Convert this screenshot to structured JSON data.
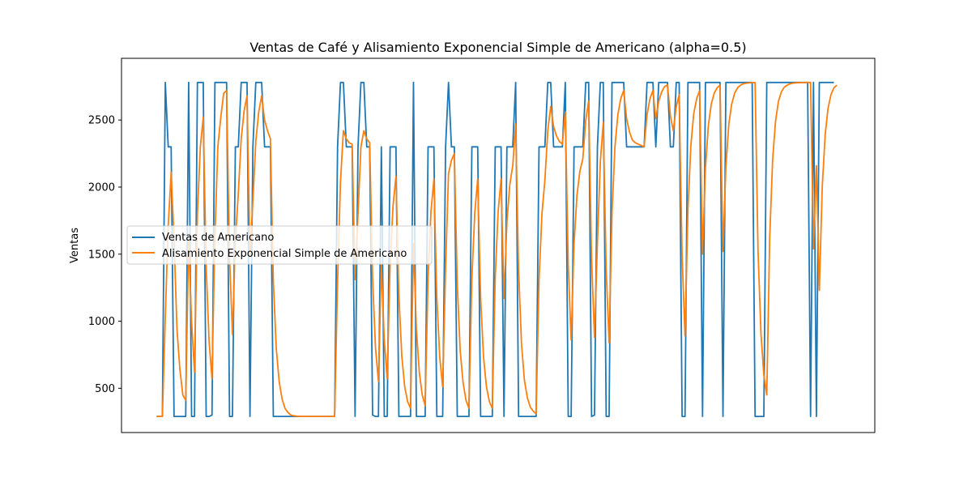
{
  "chart_data": {
    "type": "line",
    "title": "Ventas de Café y Alisamiento Exponencial Simple de Americano (alpha=0.5)",
    "xlabel": "",
    "ylabel": "Ventas",
    "yticks": [
      500,
      1000,
      1500,
      2000,
      2500
    ],
    "ylim": [
      170,
      2960
    ],
    "xlim": [
      -8,
      250
    ],
    "grid": false,
    "legend_position": "center-left",
    "colors": {
      "actual": "#1f77b4",
      "smoothed": "#ff7f0e"
    },
    "series": [
      {
        "name": "Ventas de Americano",
        "x_start": 4,
        "values": [
          290,
          290,
          290,
          2780,
          2300,
          2300,
          290,
          290,
          290,
          290,
          290,
          2780,
          290,
          290,
          2780,
          2780,
          2780,
          290,
          290,
          300,
          2780,
          2780,
          2780,
          2780,
          2780,
          290,
          290,
          2300,
          2300,
          2780,
          2780,
          2780,
          290,
          2300,
          2780,
          2780,
          2780,
          2300,
          2300,
          2300,
          290,
          290,
          290,
          290,
          290,
          290,
          290,
          290,
          290,
          290,
          290,
          290,
          290,
          290,
          290,
          290,
          290,
          290,
          290,
          290,
          290,
          290,
          2300,
          2780,
          2780,
          2300,
          2300,
          2300,
          290,
          2300,
          2780,
          2780,
          2300,
          2300,
          300,
          290,
          290,
          2300,
          290,
          290,
          2300,
          2300,
          2300,
          290,
          290,
          290,
          290,
          290,
          2780,
          290,
          290,
          290,
          290,
          2300,
          2300,
          2300,
          290,
          290,
          290,
          2300,
          2780,
          2300,
          2300,
          290,
          290,
          290,
          290,
          290,
          2300,
          2300,
          2300,
          290,
          290,
          290,
          290,
          290,
          2300,
          2300,
          2300,
          290,
          2300,
          2300,
          2300,
          2780,
          290,
          290,
          290,
          290,
          290,
          290,
          290,
          2300,
          2300,
          2300,
          2780,
          2780,
          2300,
          2300,
          2300,
          2300,
          2780,
          290,
          290,
          2300,
          2300,
          2300,
          2300,
          2780,
          2780,
          290,
          300,
          2300,
          2780,
          2780,
          290,
          290,
          2780,
          2780,
          2780,
          2780,
          2780,
          2300,
          2300,
          2300,
          2300,
          2300,
          2300,
          2300,
          2780,
          2780,
          2780,
          2300,
          2780,
          2780,
          2780,
          2780,
          2300,
          2300,
          2780,
          2780,
          290,
          290,
          2780,
          2780,
          2780,
          2780,
          2780,
          290,
          2780,
          2780,
          2780,
          2780,
          2780,
          2780,
          290,
          2780,
          2780,
          2780,
          2780,
          2780,
          2780,
          2780,
          2780,
          2780,
          2780,
          290,
          290,
          290,
          290,
          2780,
          2780,
          2780,
          2780,
          2780,
          2780,
          2780,
          2780,
          2780,
          2780,
          2780,
          2780,
          2780,
          2780,
          2780,
          290,
          2780,
          290,
          2780,
          2780,
          2780,
          2780,
          2780,
          2780
        ]
      },
      {
        "name": "Alisamiento Exponencial Simple de Americano",
        "x_start": 4,
        "values": [
          290,
          290,
          290,
          1030,
          1710,
          2110,
          1610,
          940,
          640,
          450,
          410,
          1600,
          1000,
          620,
          1800,
          2300,
          2520,
          1400,
          850,
          570,
          1640,
          2300,
          2520,
          2700,
          2720,
          1480,
          900,
          1600,
          1950,
          2360,
          2570,
          2680,
          1480,
          1900,
          2340,
          2560,
          2680,
          2500,
          2420,
          2360,
          1300,
          800,
          550,
          420,
          350,
          320,
          300,
          295,
          292,
          291,
          290,
          290,
          290,
          290,
          290,
          290,
          290,
          290,
          290,
          290,
          290,
          290,
          1300,
          2040,
          2420,
          2360,
          2330,
          2320,
          1310,
          1800,
          2300,
          2420,
          2360,
          2330,
          1320,
          800,
          550,
          1420,
          860,
          570,
          1430,
          1860,
          2080,
          1190,
          740,
          510,
          400,
          350,
          1580,
          940,
          620,
          450,
          370,
          1330,
          1820,
          2060,
          1170,
          730,
          510,
          1400,
          2100,
          2200,
          2250,
          1270,
          780,
          540,
          410,
          350,
          1320,
          1810,
          2060,
          1170,
          730,
          510,
          400,
          350,
          1330,
          1820,
          2060,
          1170,
          1740,
          2020,
          2160,
          2470,
          1380,
          830,
          560,
          430,
          360,
          330,
          310,
          1310,
          1800,
          2050,
          2420,
          2600,
          2450,
          2380,
          2340,
          2320,
          2560,
          1420,
          860,
          1580,
          1940,
          2120,
          2210,
          2500,
          2640,
          1460,
          880,
          1590,
          2190,
          2480,
          1380,
          840,
          1810,
          2300,
          2540,
          2660,
          2720,
          2510,
          2410,
          2350,
          2330,
          2320,
          2310,
          2300,
          2540,
          2660,
          2720,
          2510,
          2640,
          2710,
          2750,
          2760,
          2530,
          2420,
          2600,
          2690,
          1490,
          890,
          1830,
          2310,
          2550,
          2660,
          2720,
          1500,
          2140,
          2460,
          2620,
          2700,
          2740,
          2760,
          1520,
          2150,
          2470,
          2620,
          2700,
          2740,
          2760,
          2770,
          2775,
          2777,
          2778,
          2779,
          1530,
          910,
          600,
          450,
          1620,
          2200,
          2490,
          2640,
          2710,
          2745,
          2760,
          2770,
          2775,
          2777,
          2778,
          2779,
          2780,
          2780,
          2780,
          1540,
          2160,
          1230,
          2000,
          2390,
          2590,
          2690,
          2740,
          2760
        ]
      }
    ]
  }
}
